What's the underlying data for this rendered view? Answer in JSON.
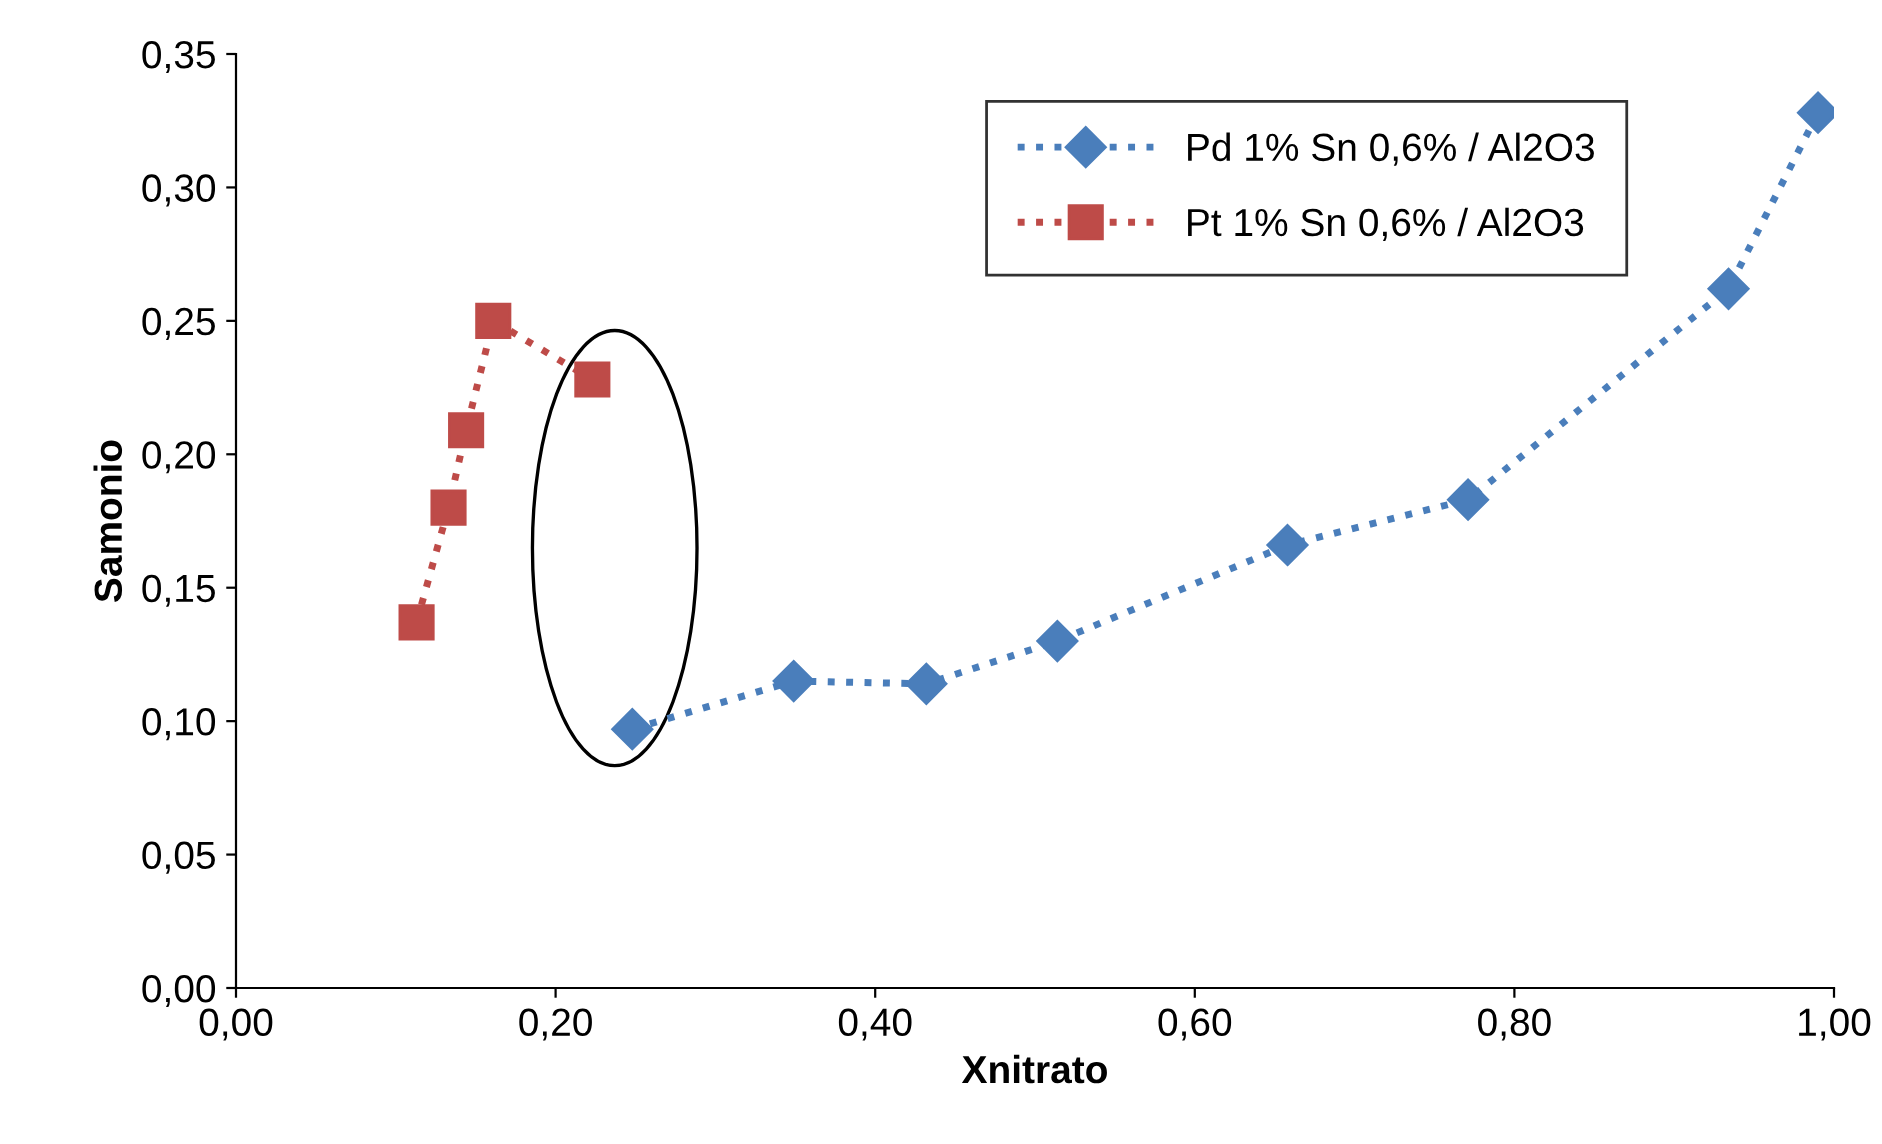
{
  "chart_data": {
    "type": "line",
    "xlabel": "Xnitrato",
    "ylabel": "Samonio",
    "series": [
      {
        "name": "Pd 1% Sn 0,6% / Al2O3",
        "color": "#4a7ebb",
        "marker": "diamond",
        "line_style": "dotted",
        "x": [
          0.248,
          0.349,
          0.432,
          0.514,
          0.658,
          0.771,
          0.934,
          0.99
        ],
        "values": [
          0.097,
          0.115,
          0.114,
          0.13,
          0.166,
          0.183,
          0.262,
          0.328
        ]
      },
      {
        "name": "Pt 1% Sn 0,6% / Al2O3",
        "color": "#be4b48",
        "marker": "square",
        "line_style": "dotted",
        "x": [
          0.113,
          0.133,
          0.144,
          0.161,
          0.223
        ],
        "values": [
          0.137,
          0.18,
          0.209,
          0.25,
          0.228
        ]
      }
    ],
    "xlim": [
      0,
      1
    ],
    "ylim": [
      0,
      0.35
    ],
    "xticks": [
      {
        "value": 0,
        "label": "0,00"
      },
      {
        "value": 0.2,
        "label": "0,20"
      },
      {
        "value": 0.4,
        "label": "0,40"
      },
      {
        "value": 0.6,
        "label": "0,60"
      },
      {
        "value": 0.8,
        "label": "0,80"
      },
      {
        "value": 1,
        "label": "1,00"
      }
    ],
    "yticks": [
      {
        "value": 0,
        "label": "0,00"
      },
      {
        "value": 0.05,
        "label": "0,05"
      },
      {
        "value": 0.1,
        "label": "0,10"
      },
      {
        "value": 0.15,
        "label": "0,15"
      },
      {
        "value": 0.2,
        "label": "0,20"
      },
      {
        "value": 0.25,
        "label": "0,25"
      },
      {
        "value": 0.3,
        "label": "0,30"
      },
      {
        "value": 0.35,
        "label": "0,35"
      }
    ],
    "grid": false,
    "legend": "top"
  }
}
